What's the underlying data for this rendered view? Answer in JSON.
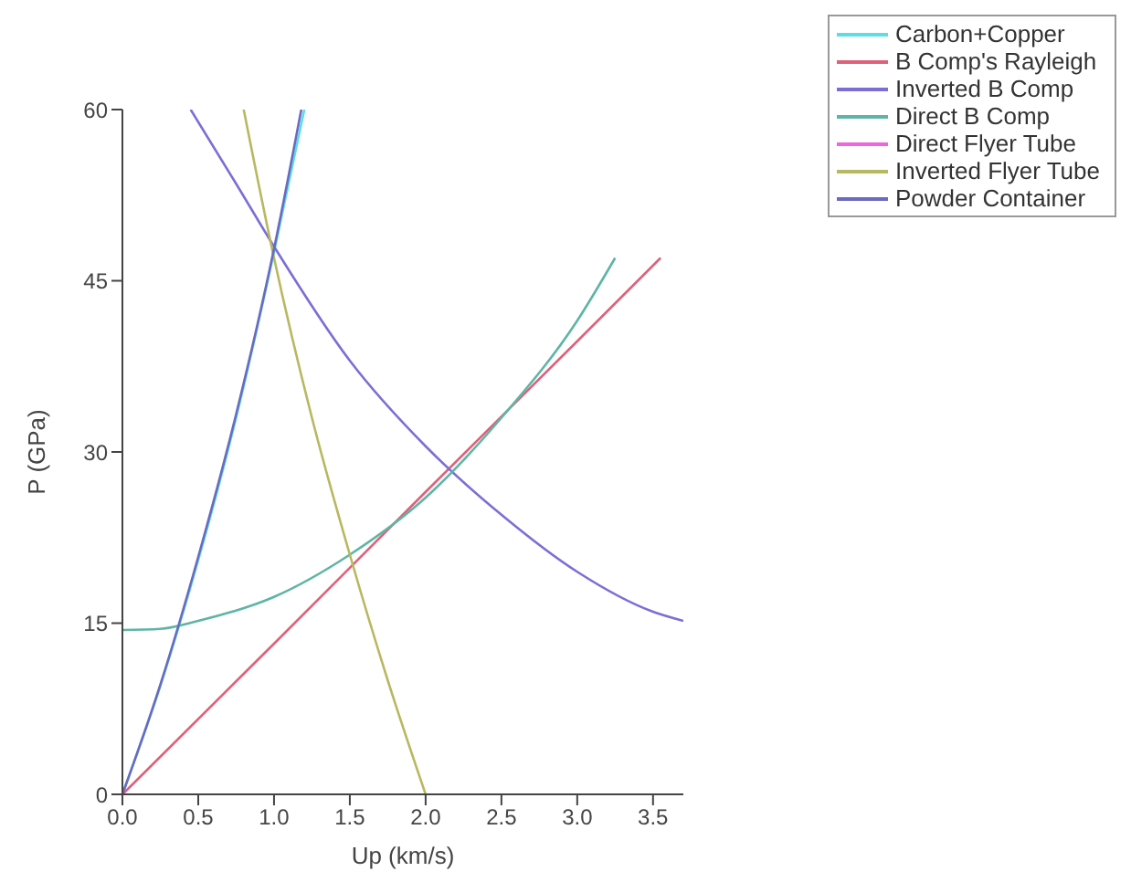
{
  "chart_data": {
    "type": "line",
    "xlabel": "Up (km/s)",
    "ylabel": "P (GPa)",
    "xlim": [
      0,
      3.7
    ],
    "ylim": [
      0,
      60
    ],
    "xticks": [
      {
        "value": 0,
        "label": "0.0"
      },
      {
        "value": 0.5,
        "label": "0.5"
      },
      {
        "value": 1,
        "label": "1.0"
      },
      {
        "value": 1.5,
        "label": "1.5"
      },
      {
        "value": 2,
        "label": "2.0"
      },
      {
        "value": 2.5,
        "label": "2.5"
      },
      {
        "value": 3,
        "label": "3.0"
      },
      {
        "value": 3.5,
        "label": "3.5"
      }
    ],
    "yticks": [
      0,
      15,
      30,
      45,
      60
    ],
    "grid": false,
    "legend": "top right",
    "marker": "none",
    "line_style": "solid",
    "series": [
      {
        "name": "Carbon+Copper",
        "color": "#5cdde6",
        "x": [
          0,
          0.25,
          0.5,
          0.75,
          1.0,
          1.2
        ],
        "values": [
          0,
          9.5,
          20.5,
          33,
          47.5,
          60
        ]
      },
      {
        "name": "B Comp's Rayleigh",
        "color": "#e0607a",
        "x": [
          0,
          1,
          2,
          3,
          3.55
        ],
        "values": [
          0,
          13.2,
          26.5,
          39.7,
          47
        ]
      },
      {
        "name": "Inverted B Comp",
        "color": "#7b6fd6",
        "x": [
          0.45,
          0.75,
          1.0,
          1.5,
          2.0,
          2.5,
          3.0,
          3.5,
          3.7
        ],
        "values": [
          60,
          53.5,
          48,
          38,
          30.5,
          24.5,
          19.5,
          16,
          15.2
        ]
      },
      {
        "name": "Direct B Comp",
        "color": "#5fb5a5",
        "x": [
          0,
          0.25,
          0.5,
          1.0,
          1.5,
          2.0,
          2.5,
          3.0,
          3.25
        ],
        "values": [
          14.4,
          14.5,
          15.2,
          17.3,
          21,
          26,
          33,
          41.5,
          47
        ]
      },
      {
        "name": "Direct Flyer Tube",
        "color": "#ee66dd"
      },
      {
        "name": "Inverted Flyer Tube",
        "color": "#b8b860",
        "x": [
          0.8,
          1.0,
          1.25,
          1.5,
          1.75,
          2.0
        ],
        "values": [
          60,
          47,
          33,
          21,
          10,
          0
        ]
      },
      {
        "name": "Powder Container",
        "color": "#6a6ac0",
        "x": [
          0,
          0.25,
          0.5,
          0.75,
          1.0,
          1.18
        ],
        "values": [
          0,
          9.6,
          20.8,
          33.3,
          47.8,
          60
        ]
      }
    ]
  }
}
